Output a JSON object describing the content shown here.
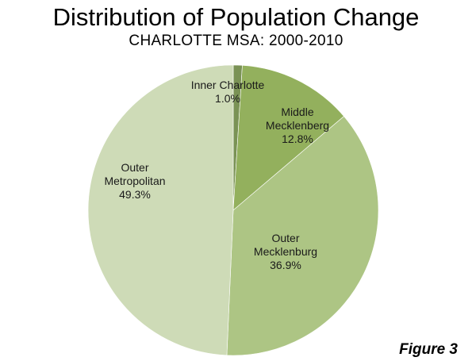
{
  "chart_data": {
    "type": "pie",
    "title": "Distribution of Population Change",
    "subtitle": "CHARLOTTE MSA:  2000-2010",
    "slices": [
      {
        "label_lines": [
          "Inner Charlotte",
          "1.0%"
        ],
        "value": 1.0,
        "color": "#7a9255"
      },
      {
        "label_lines": [
          "Middle",
          "Mecklenberg",
          "12.8%"
        ],
        "value": 12.8,
        "color": "#93b05d"
      },
      {
        "label_lines": [
          "Outer",
          "Mecklenburg",
          "36.9%"
        ],
        "value": 36.9,
        "color": "#adc584"
      },
      {
        "label_lines": [
          "Outer",
          "Metropolitan",
          "49.3%"
        ],
        "value": 49.3,
        "color": "#cedbb7"
      }
    ],
    "start_angle_deg": 0,
    "direction": "clockwise",
    "legend": "none",
    "footer": "Figure 3"
  }
}
